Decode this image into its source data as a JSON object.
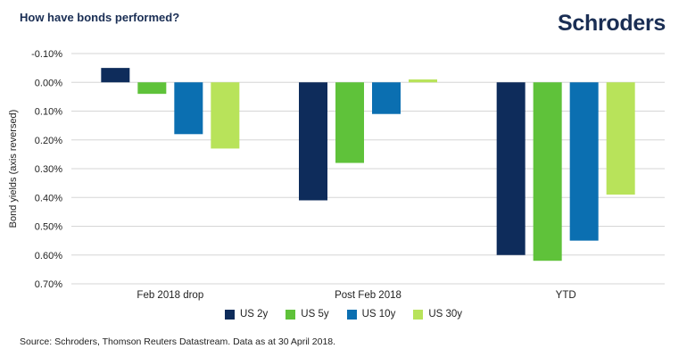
{
  "header": {
    "title": "How have bonds performed?",
    "brand": "Schroders"
  },
  "source": "Source: Schroders, Thomson Reuters Datastream. Data as at 30 April 2018.",
  "chart_data": {
    "type": "bar",
    "title": "How have bonds performed?",
    "xlabel": "",
    "ylabel": "Bond yields (axis reversed)",
    "y_reversed": true,
    "ylim": [
      -0.1,
      0.7
    ],
    "yticks": [
      -0.1,
      0.0,
      0.1,
      0.2,
      0.3,
      0.4,
      0.5,
      0.6,
      0.7
    ],
    "ytick_labels": [
      "-0.10%",
      "0.00%",
      "0.10%",
      "0.20%",
      "0.30%",
      "0.40%",
      "0.50%",
      "0.60%",
      "0.70%"
    ],
    "grid": true,
    "legend_position": "bottom-center",
    "categories": [
      "Feb 2018 drop",
      "Post Feb 2018",
      "YTD"
    ],
    "series": [
      {
        "name": "US 2y",
        "color": "#0e2c5b",
        "values": [
          -0.05,
          0.41,
          0.6
        ]
      },
      {
        "name": "US 5y",
        "color": "#5fc23a",
        "values": [
          0.04,
          0.28,
          0.62
        ]
      },
      {
        "name": "US 10y",
        "color": "#0b6fb1",
        "values": [
          0.18,
          0.11,
          0.55
        ]
      },
      {
        "name": "US 30y",
        "color": "#b8e35a",
        "values": [
          0.23,
          -0.01,
          0.39
        ]
      }
    ]
  }
}
